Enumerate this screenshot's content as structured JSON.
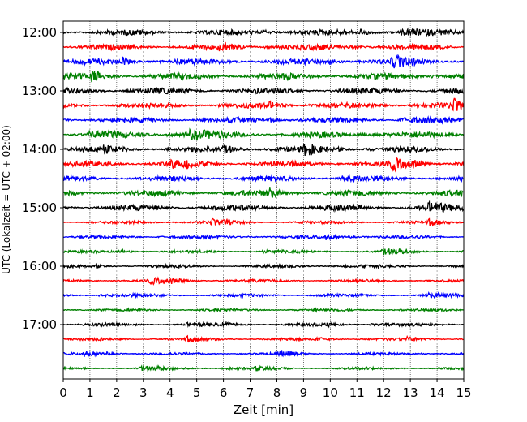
{
  "chart_data": {
    "type": "line",
    "title": "",
    "xlabel": "Zeit  [min]",
    "ylabel": "UTC (Lokalzeit = UTC + 02:00)",
    "xlim": [
      0,
      15
    ],
    "x_ticks": [
      0,
      1,
      2,
      3,
      4,
      5,
      6,
      7,
      8,
      9,
      10,
      11,
      12,
      13,
      14,
      15
    ],
    "x_tick_labels": [
      "0",
      "1",
      "2",
      "3",
      "4",
      "5",
      "6",
      "7",
      "8",
      "9",
      "10",
      "11",
      "12",
      "13",
      "14",
      "15"
    ],
    "y_tick_labels": [
      "12:00",
      "13:00",
      "14:00",
      "15:00",
      "16:00",
      "17:00"
    ],
    "grid_x": true,
    "trace_colors": [
      "#000000",
      "#ff0000",
      "#0000ff",
      "#008000"
    ],
    "traces": [
      {
        "start": "12:00",
        "color": "#000000",
        "noise": 0.55
      },
      {
        "start": "12:15",
        "color": "#ff0000",
        "noise": 0.5
      },
      {
        "start": "12:30",
        "color": "#0000ff",
        "noise": 0.6
      },
      {
        "start": "12:45",
        "color": "#008000",
        "noise": 0.65
      },
      {
        "start": "13:00",
        "color": "#000000",
        "noise": 0.6
      },
      {
        "start": "13:15",
        "color": "#ff0000",
        "noise": 0.5
      },
      {
        "start": "13:30",
        "color": "#0000ff",
        "noise": 0.5
      },
      {
        "start": "13:45",
        "color": "#008000",
        "noise": 0.6
      },
      {
        "start": "14:00",
        "color": "#000000",
        "noise": 0.55
      },
      {
        "start": "14:15",
        "color": "#ff0000",
        "noise": 0.55
      },
      {
        "start": "14:30",
        "color": "#0000ff",
        "noise": 0.5
      },
      {
        "start": "14:45",
        "color": "#008000",
        "noise": 0.6
      },
      {
        "start": "15:00",
        "color": "#000000",
        "noise": 0.6
      },
      {
        "start": "15:15",
        "color": "#ff0000",
        "noise": 0.18
      },
      {
        "start": "15:30",
        "color": "#0000ff",
        "noise": 0.2
      },
      {
        "start": "15:45",
        "color": "#008000",
        "noise": 0.15
      },
      {
        "start": "16:00",
        "color": "#000000",
        "noise": 0.18
      },
      {
        "start": "16:15",
        "color": "#ff0000",
        "noise": 0.18
      },
      {
        "start": "16:30",
        "color": "#0000ff",
        "noise": 0.2
      },
      {
        "start": "16:45",
        "color": "#008000",
        "noise": 0.15
      },
      {
        "start": "17:00",
        "color": "#000000",
        "noise": 0.18
      },
      {
        "start": "17:15",
        "color": "#ff0000",
        "noise": 0.15
      },
      {
        "start": "17:30",
        "color": "#0000ff",
        "noise": 0.12
      },
      {
        "start": "17:45",
        "color": "#008000",
        "noise": 0.12
      }
    ]
  }
}
